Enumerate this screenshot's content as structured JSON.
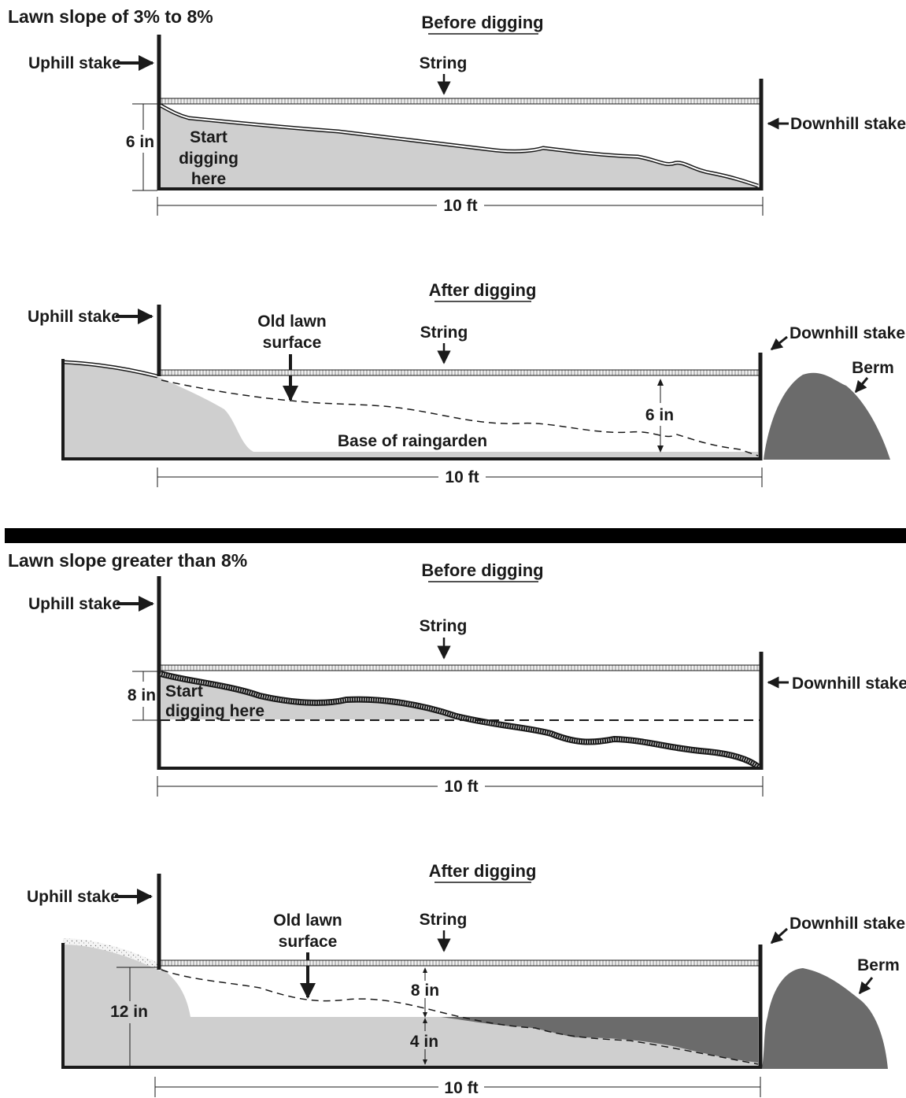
{
  "sections": [
    {
      "title": "Lawn slope of 3% to 8%",
      "before": {
        "heading": "Before digging",
        "uphill_stake": "Uphill stake",
        "string": "String",
        "downhill_stake": "Downhill stake",
        "depth": "6 in",
        "start_line1": "Start",
        "start_line2": "digging",
        "start_line3": "here",
        "width": "10 ft"
      },
      "after": {
        "heading": "After digging",
        "uphill_stake": "Uphill stake",
        "old_lawn_line1": "Old lawn",
        "old_lawn_line2": "surface",
        "string": "String",
        "downhill_stake": "Downhill stake",
        "berm": "Berm",
        "depth": "6 in",
        "base": "Base of raingarden",
        "width": "10 ft"
      }
    },
    {
      "title": "Lawn slope greater than 8%",
      "before": {
        "heading": "Before digging",
        "uphill_stake": "Uphill stake",
        "string": "String",
        "downhill_stake": "Downhill stake",
        "depth": "8 in",
        "start_line1": "Start",
        "start_line2": "digging here",
        "width": "10 ft"
      },
      "after": {
        "heading": "After digging",
        "uphill_stake": "Uphill stake",
        "old_lawn_line1": "Old lawn",
        "old_lawn_line2": "surface",
        "string": "String",
        "downhill_stake": "Downhill stake",
        "berm": "Berm",
        "depth_cut": "12 in",
        "depth_upper": "8 in",
        "depth_lower": "4 in",
        "width": "10 ft"
      }
    }
  ],
  "colors": {
    "ink": "#1a1a1a",
    "soil_light": "#cfcfcf",
    "soil_dark": "#6b6b6b",
    "string_fill": "#e6e6e6"
  }
}
